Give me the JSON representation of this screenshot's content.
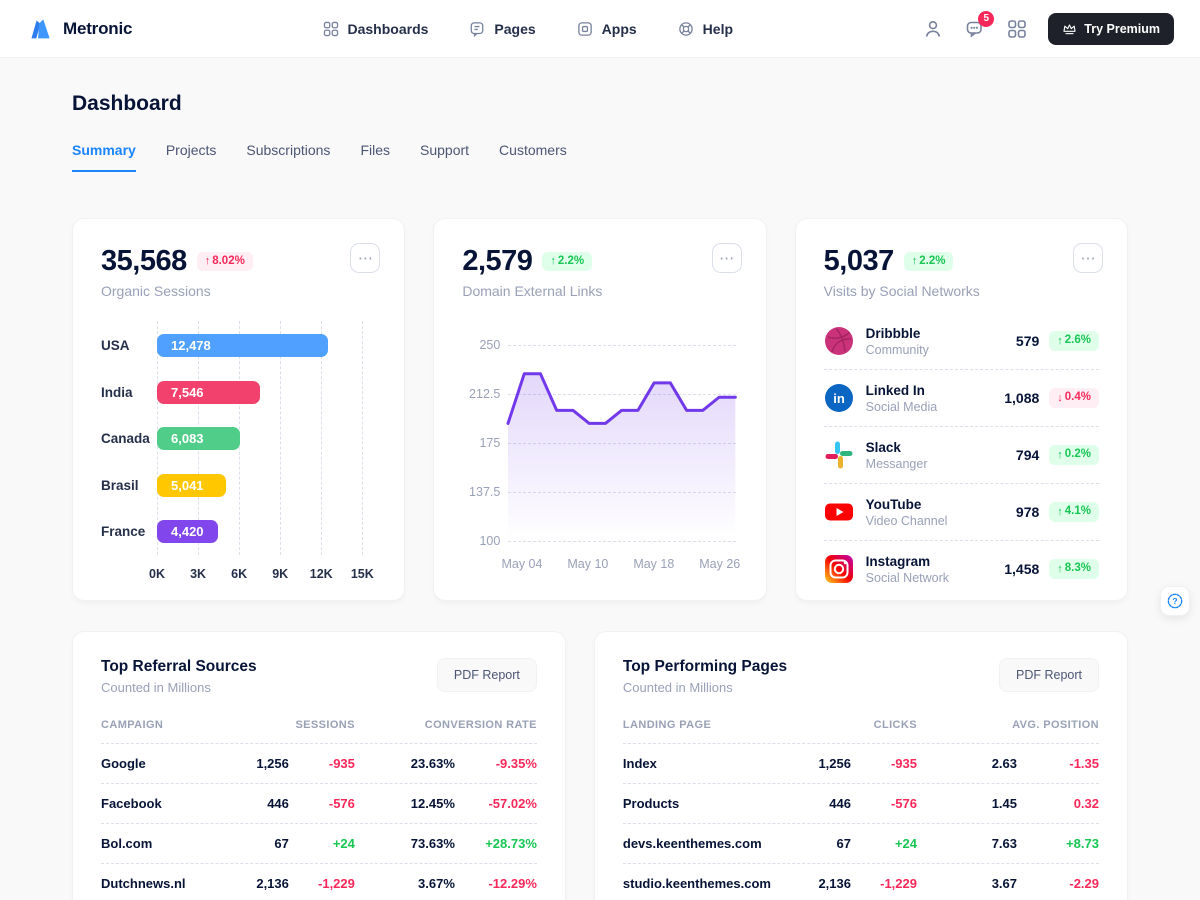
{
  "colors": {
    "primary": "#1B84FF",
    "success": "#17C653",
    "danger": "#F8285A",
    "success_bg": "#DFFFEA",
    "danger_bg": "#FFEEF3",
    "line": "#7239EA",
    "text_dark": "#071437",
    "text_muted": "#99A1B7"
  },
  "header": {
    "brand": "Metronic",
    "menu": [
      {
        "label": "Dashboards"
      },
      {
        "label": "Pages"
      },
      {
        "label": "Apps"
      },
      {
        "label": "Help"
      }
    ],
    "notification_count": "5",
    "premium_label": "Try Premium"
  },
  "page": {
    "title": "Dashboard",
    "tabs": [
      {
        "label": "Summary",
        "active": true
      },
      {
        "label": "Projects"
      },
      {
        "label": "Subscriptions"
      },
      {
        "label": "Files"
      },
      {
        "label": "Support"
      },
      {
        "label": "Customers"
      }
    ]
  },
  "stats": {
    "organic": {
      "value": "35,568",
      "delta": "8.02%",
      "delta_dir": "up",
      "delta_tone": "danger",
      "subtitle": "Organic Sessions"
    },
    "domains": {
      "value": "2,579",
      "delta": "2.2%",
      "delta_dir": "up",
      "delta_tone": "success",
      "subtitle": "Domain External Links"
    },
    "social": {
      "value": "5,037",
      "delta": "2.2%",
      "delta_dir": "up",
      "delta_tone": "success",
      "subtitle": "Visits by Social Networks",
      "items": [
        {
          "icon": "dribbble",
          "name": "Dribbble",
          "category": "Community",
          "value": "579",
          "delta": "2.6%",
          "delta_dir": "up",
          "delta_tone": "success"
        },
        {
          "icon": "linkedin",
          "name": "Linked In",
          "category": "Social Media",
          "value": "1,088",
          "delta": "0.4%",
          "delta_dir": "down",
          "delta_tone": "danger"
        },
        {
          "icon": "slack",
          "name": "Slack",
          "category": "Messanger",
          "value": "794",
          "delta": "0.2%",
          "delta_dir": "up",
          "delta_tone": "success"
        },
        {
          "icon": "youtube",
          "name": "YouTube",
          "category": "Video Channel",
          "value": "978",
          "delta": "4.1%",
          "delta_dir": "up",
          "delta_tone": "success"
        },
        {
          "icon": "instagram",
          "name": "Instagram",
          "category": "Social Network",
          "value": "1,458",
          "delta": "8.3%",
          "delta_dir": "up",
          "delta_tone": "success"
        }
      ]
    }
  },
  "chart_data": [
    {
      "type": "bar",
      "orientation": "horizontal",
      "title": "Organic Sessions by Country",
      "categories": [
        "USA",
        "India",
        "Canada",
        "Brasil",
        "France"
      ],
      "values": [
        12478,
        7546,
        6083,
        5041,
        4420
      ],
      "value_labels": [
        "12,478",
        "7,546",
        "6,083",
        "5,041",
        "4,420"
      ],
      "bar_colors": [
        "#4FA0FF",
        "#F1416C",
        "#50CD89",
        "#FFC700",
        "#8146EC"
      ],
      "xlim": [
        0,
        15000
      ],
      "x_ticks": [
        "0K",
        "3K",
        "6K",
        "9K",
        "12K",
        "15K"
      ],
      "grid": "dashed-vertical"
    },
    {
      "type": "area",
      "title": "Domain External Links over time",
      "x_ticks": [
        "May 04",
        "May 10",
        "May 18",
        "May 26"
      ],
      "x_tick_pos": [
        0.06,
        0.35,
        0.64,
        0.93
      ],
      "y_ticks": [
        "250",
        "212.5",
        "175",
        "137.5",
        "100"
      ],
      "ylim": [
        100,
        250
      ],
      "values": [
        190,
        228,
        228,
        200,
        200,
        190,
        190,
        200,
        200,
        221,
        221,
        200,
        200,
        210,
        210
      ],
      "line_color": "#7239EA",
      "grid": "dashed-horizontal",
      "legend": "none"
    }
  ],
  "referral": {
    "title": "Top Referral Sources",
    "subtitle": "Counted in Millions",
    "button": "PDF Report",
    "columns": [
      "CAMPAIGN",
      "SESSIONS",
      "CONVERSION RATE"
    ],
    "rows": [
      {
        "name": "Google",
        "value": "1,256",
        "delta": "-935",
        "delta_tone": "danger",
        "rate": "23.63%",
        "rate_delta": "-9.35%",
        "rate_tone": "danger"
      },
      {
        "name": "Facebook",
        "value": "446",
        "delta": "-576",
        "delta_tone": "danger",
        "rate": "12.45%",
        "rate_delta": "-57.02%",
        "rate_tone": "danger"
      },
      {
        "name": "Bol.com",
        "value": "67",
        "delta": "+24",
        "delta_tone": "success",
        "rate": "73.63%",
        "rate_delta": "+28.73%",
        "rate_tone": "success"
      },
      {
        "name": "Dutchnews.nl",
        "value": "2,136",
        "delta": "-1,229",
        "delta_tone": "danger",
        "rate": "3.67%",
        "rate_delta": "-12.29%",
        "rate_tone": "danger"
      }
    ]
  },
  "performing": {
    "title": "Top Performing Pages",
    "subtitle": "Counted in Millions",
    "button": "PDF Report",
    "columns": [
      "LANDING PAGE",
      "CLICKS",
      "AVG. POSITION"
    ],
    "rows": [
      {
        "name": "Index",
        "value": "1,256",
        "delta": "-935",
        "delta_tone": "danger",
        "rate": "2.63",
        "rate_delta": "-1.35",
        "rate_tone": "danger"
      },
      {
        "name": "Products",
        "value": "446",
        "delta": "-576",
        "delta_tone": "danger",
        "rate": "1.45",
        "rate_delta": "0.32",
        "rate_tone": "danger"
      },
      {
        "name": "devs.keenthemes.com",
        "value": "67",
        "delta": "+24",
        "delta_tone": "success",
        "rate": "7.63",
        "rate_delta": "+8.73",
        "rate_tone": "success"
      },
      {
        "name": "studio.keenthemes.com",
        "value": "2,136",
        "delta": "-1,229",
        "delta_tone": "danger",
        "rate": "3.67",
        "rate_delta": "-2.29",
        "rate_tone": "danger"
      }
    ]
  }
}
